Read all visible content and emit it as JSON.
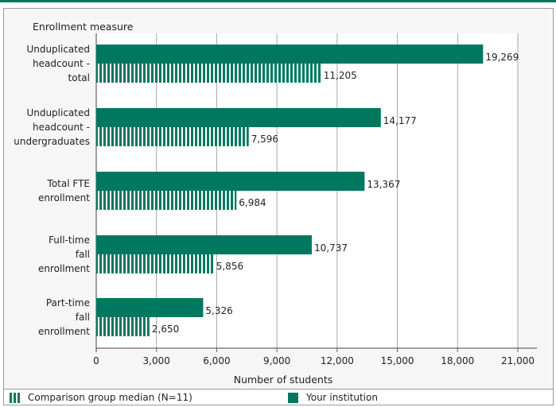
{
  "chart_data": {
    "type": "bar",
    "orientation": "horizontal",
    "ylabel": "Enrollment measure",
    "xlabel": "Number of students",
    "xlim": [
      0,
      21000
    ],
    "xticks": [
      0,
      3000,
      6000,
      9000,
      12000,
      15000,
      18000,
      21000
    ],
    "xtick_labels": [
      "0",
      "3,000",
      "6,000",
      "9,000",
      "12,000",
      "15,000",
      "18,000",
      "21,000"
    ],
    "categories": [
      [
        "Unduplicated",
        "headcount -",
        "total"
      ],
      [
        "Unduplicated",
        "headcount -",
        "undergraduates"
      ],
      [
        "Total FTE",
        "enrollment"
      ],
      [
        "Full-time",
        "fall",
        "enrollment"
      ],
      [
        "Part-time",
        "fall",
        "enrollment"
      ]
    ],
    "series": [
      {
        "name": "Your institution",
        "style": "solid",
        "color": "#00785f",
        "values": [
          19269,
          14177,
          13367,
          10737,
          5326
        ],
        "value_labels": [
          "19,269",
          "14,177",
          "13,367",
          "10,737",
          "5,326"
        ]
      },
      {
        "name": "Comparison group median (N=11)",
        "style": "striped",
        "color": "#00785f",
        "values": [
          11205,
          7596,
          6984,
          5856,
          2650
        ],
        "value_labels": [
          "11,205",
          "7,596",
          "6,984",
          "5,856",
          "2,650"
        ]
      }
    ],
    "grid": true,
    "legend_position": "bottom"
  },
  "legend": {
    "comparison_label": "Comparison group median (N=11)",
    "institution_label": "Your institution"
  }
}
